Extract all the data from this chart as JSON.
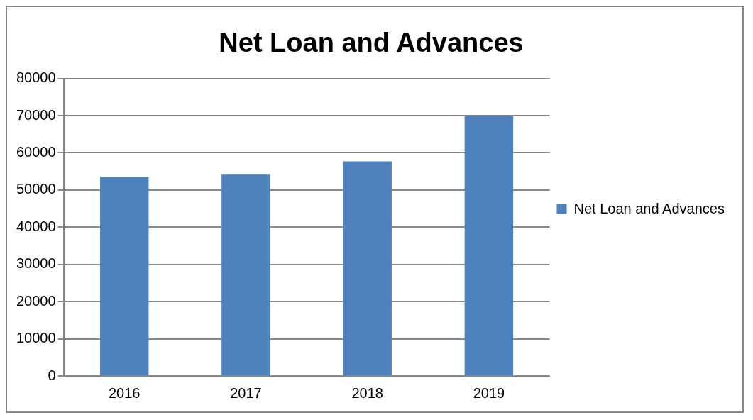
{
  "chart_data": {
    "type": "bar",
    "title": "Net Loan and Advances",
    "categories": [
      "2016",
      "2017",
      "2018",
      "2019"
    ],
    "series": [
      {
        "name": "Net Loan and Advances",
        "color": "#4f81bd",
        "values": [
          53500,
          54300,
          57700,
          69800
        ]
      }
    ],
    "ylim": [
      0,
      80000
    ],
    "yticks": [
      0,
      10000,
      20000,
      30000,
      40000,
      50000,
      60000,
      70000,
      80000
    ],
    "grid": "y",
    "legend": "right"
  }
}
